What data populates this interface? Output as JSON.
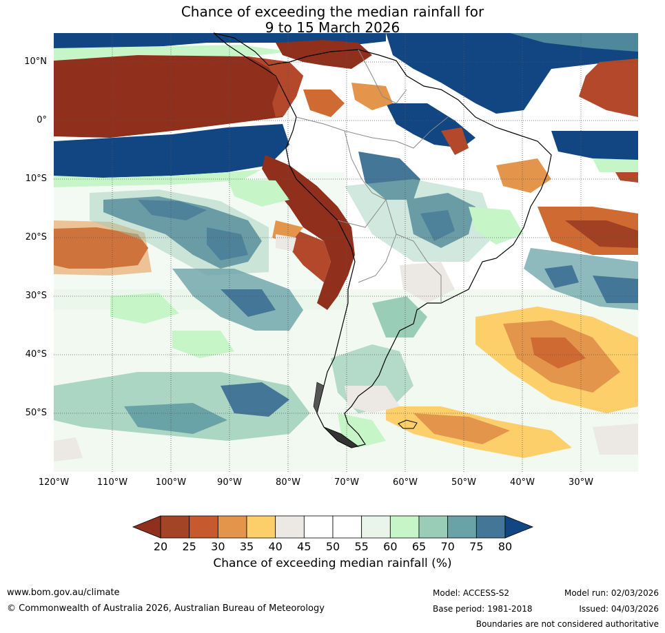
{
  "title": {
    "line1": "Chance of exceeding the median rainfall for",
    "line2": "9 to 15 March 2026"
  },
  "map": {
    "lat_labels": [
      "10°N",
      "0°",
      "10°S",
      "20°S",
      "30°S",
      "40°S",
      "50°S"
    ],
    "lon_labels": [
      "120°W",
      "110°W",
      "100°W",
      "90°W",
      "80°W",
      "70°W",
      "60°W",
      "50°W",
      "40°W",
      "30°W"
    ],
    "extent": {
      "lon_min": -120,
      "lon_max": -20,
      "lat_min": -60,
      "lat_max": 15
    },
    "colors": {
      "c20": "#8f2f1c",
      "c25": "#b3492a",
      "c30": "#cf6a33",
      "c35": "#e3954b",
      "c40": "#fdcf6b",
      "c45": "#ece9e4",
      "c55": "#ffffff",
      "c60": "#e8f5e8",
      "c65": "#c6f6c8",
      "c70": "#9acdb8",
      "c75": "#6aa3a7",
      "c80": "#447698",
      "c85": "#114682"
    }
  },
  "legend": {
    "ticks": [
      "20",
      "25",
      "30",
      "35",
      "40",
      "45",
      "50",
      "55",
      "60",
      "65",
      "70",
      "75",
      "80"
    ],
    "colors": [
      "#a34426",
      "#c65a2e",
      "#e3954b",
      "#fdcf6b",
      "#ece9e4",
      "#ffffff",
      "#ffffff",
      "#e8f5e8",
      "#c6f6c8",
      "#9acdb8",
      "#6aa3a7",
      "#447698"
    ],
    "low_arrow_color": "#8f2f1c",
    "high_arrow_color": "#114682",
    "label": "Chance of exceeding median rainfall (%)"
  },
  "footer": {
    "url": "www.bom.gov.au/climate",
    "copyright": "© Commonwealth of Australia 2026, Australian Bureau of Meteorology",
    "model": "Model: ACCESS-S2",
    "base_period": "Base period: 1981-2018",
    "model_run": "Model run: 02/03/2026",
    "issued": "Issued: 04/03/2026",
    "boundaries": "Boundaries are not considered authoritative"
  }
}
